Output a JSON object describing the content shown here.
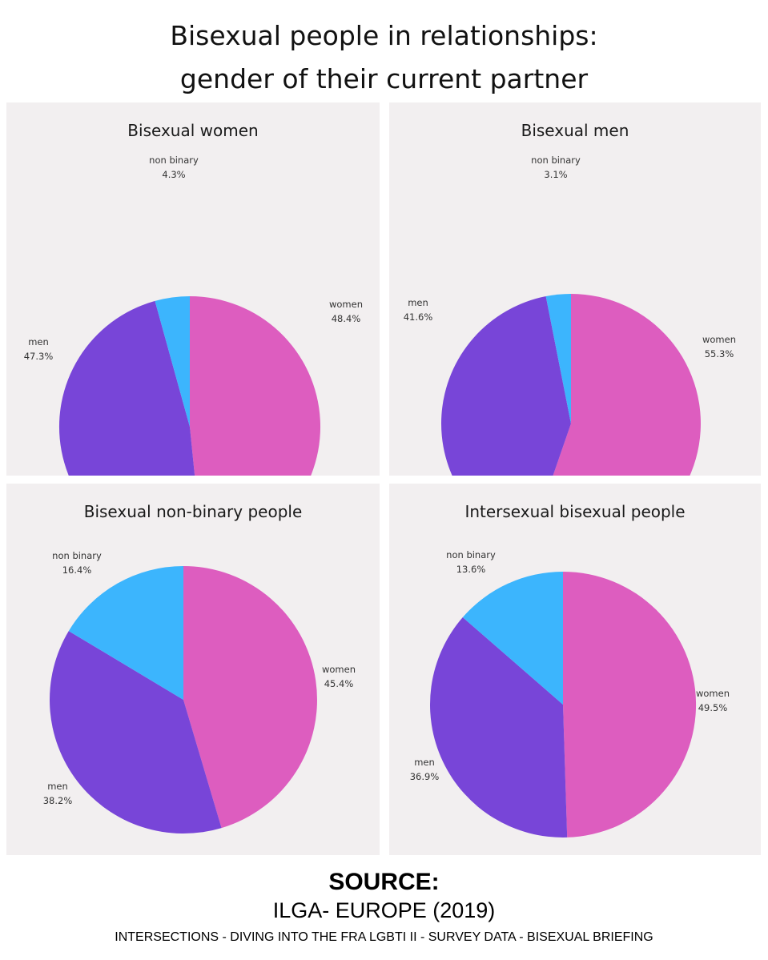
{
  "header": {
    "title_line1": "Bisexual people in relationships:",
    "title_line2": "gender of their current partner"
  },
  "colors": {
    "women": "#dd5dbf",
    "men": "#7845d8",
    "non_binary": "#3cb5fd",
    "panel_bg": "#f2eff0"
  },
  "chart_data": [
    {
      "type": "pie",
      "title": "Bisexual women",
      "slices": [
        {
          "label": "women",
          "value": 48.4,
          "display": "48.4%"
        },
        {
          "label": "men",
          "value": 47.3,
          "display": "47.3%"
        },
        {
          "label": "non binary",
          "value": 4.3,
          "display": "4.3%"
        }
      ]
    },
    {
      "type": "pie",
      "title": "Bisexual men",
      "slices": [
        {
          "label": "women",
          "value": 55.3,
          "display": "55.3%"
        },
        {
          "label": "men",
          "value": 41.6,
          "display": "41.6%"
        },
        {
          "label": "non binary",
          "value": 3.1,
          "display": "3.1%"
        }
      ]
    },
    {
      "type": "pie",
      "title": "Bisexual non-binary people",
      "slices": [
        {
          "label": "women",
          "value": 45.4,
          "display": "45.4%"
        },
        {
          "label": "men",
          "value": 38.2,
          "display": "38.2%"
        },
        {
          "label": "non binary",
          "value": 16.4,
          "display": "16.4%"
        }
      ]
    },
    {
      "type": "pie",
      "title": "Intersexual bisexual people",
      "slices": [
        {
          "label": "women",
          "value": 49.5,
          "display": "49.5%"
        },
        {
          "label": "men",
          "value": 36.9,
          "display": "36.9%"
        },
        {
          "label": "non binary",
          "value": 13.6,
          "display": "13.6%"
        }
      ]
    }
  ],
  "source": {
    "heading": "SOURCE:",
    "org": "ILGA- EUROPE (2019)",
    "detail": "INTERSECTIONS - DIVING INTO THE FRA LGBTI II - SURVEY DATA - BISEXUAL BRIEFING"
  }
}
